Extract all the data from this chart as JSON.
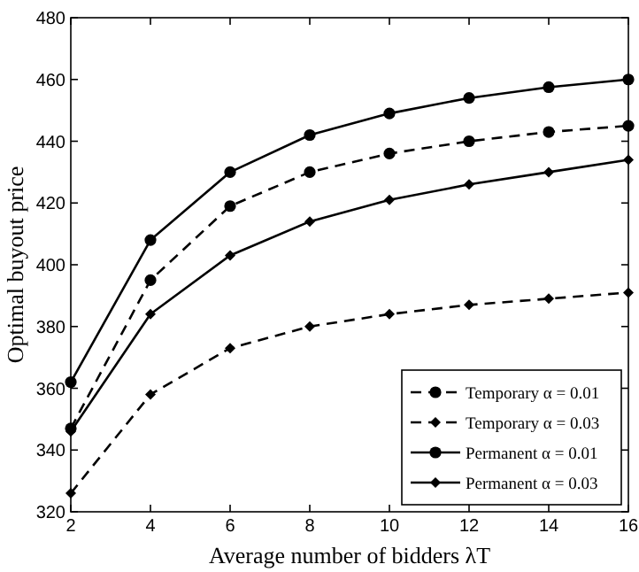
{
  "chart_data": {
    "type": "line",
    "xlabel": "Average number of bidders λT",
    "ylabel": "Optimal buyout price",
    "x": [
      2,
      4,
      6,
      8,
      10,
      12,
      14,
      16
    ],
    "series": [
      {
        "name": "Temporary α = 0.01",
        "color": "#000000",
        "line_style": "dashed",
        "marker": "circle",
        "values": [
          347,
          395,
          419,
          430,
          436,
          440,
          443,
          445
        ]
      },
      {
        "name": "Temporary α = 0.03",
        "color": "#000000",
        "line_style": "dashed",
        "marker": "diamond",
        "values": [
          326,
          358,
          373,
          380,
          384,
          387,
          389,
          391
        ]
      },
      {
        "name": "Permanent α = 0.01",
        "color": "#000000",
        "line_style": "solid",
        "marker": "circle",
        "values": [
          362,
          408,
          430,
          442,
          449,
          454,
          457.5,
          460
        ]
      },
      {
        "name": "Permanent α = 0.03",
        "color": "#000000",
        "line_style": "solid",
        "marker": "diamond",
        "values": [
          346,
          384,
          403,
          414,
          421,
          426,
          430,
          434
        ]
      }
    ],
    "xlim": [
      2,
      16
    ],
    "xticks": [
      2,
      4,
      6,
      8,
      10,
      12,
      14,
      16
    ],
    "ylim": [
      320,
      480
    ],
    "yticks": [
      320,
      340,
      360,
      380,
      400,
      420,
      440,
      460,
      480
    ],
    "grid": false,
    "legend": "bottom right"
  }
}
